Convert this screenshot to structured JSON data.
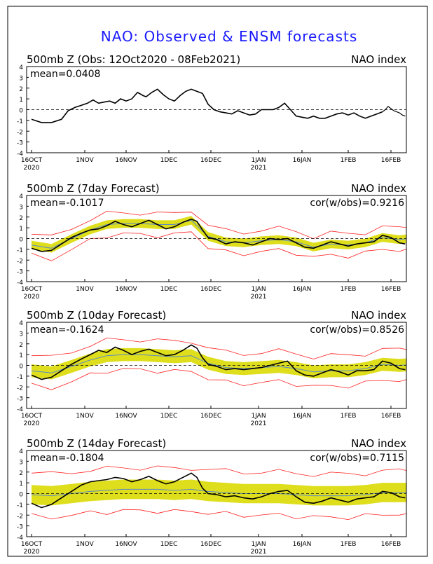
{
  "title": "NAO: Observed & ENSM forecasts",
  "colors": {
    "title": "#1a1aff",
    "observed": "#000000",
    "ensemble_members": "#ff2020",
    "spread_band": "#dede1c",
    "ensemble_mean": "#5a8ac8"
  },
  "x_axis": {
    "tick_labels": [
      "16OCT",
      "1NOV",
      "16NOV",
      "1DEC",
      "16DEC",
      "1JAN",
      "16JAN",
      "1FEB",
      "16FEB"
    ],
    "year_labels": [
      "2020",
      "2021"
    ],
    "day_range": [
      0,
      130
    ]
  },
  "y_axis": {
    "tick_labels": [
      "4",
      "3",
      "2",
      "1",
      "0",
      "-1",
      "-2",
      "-3",
      "-4"
    ],
    "range": [
      -4,
      4
    ]
  },
  "chart_data": [
    {
      "type": "line",
      "title": "500mb Z (Obs: 12Oct2020 - 08Feb2021)",
      "right_label": "NAO index",
      "mean_label": "mean=0.0408",
      "cor_label": "",
      "xlim": [
        0,
        130
      ],
      "ylim": [
        -4,
        4
      ],
      "series": [
        {
          "name": "Observed",
          "x": [
            0,
            3,
            6,
            9,
            11,
            13,
            15,
            17,
            19,
            21,
            23,
            25,
            27,
            29,
            31,
            33,
            35,
            37,
            38,
            40,
            42,
            44,
            46,
            48,
            50,
            52,
            54,
            56,
            58,
            60,
            62,
            64,
            66,
            68,
            70,
            72,
            74,
            76,
            78,
            80,
            82,
            84,
            86,
            88,
            90,
            92,
            94,
            96,
            98,
            100,
            102,
            104,
            106,
            108,
            110,
            112,
            114,
            116,
            118,
            120
          ],
          "y": [
            -0.9,
            -1.2,
            -1.2,
            -0.9,
            -0.1,
            0.2,
            0.4,
            0.6,
            0.9,
            0.6,
            0.7,
            0.8,
            0.6,
            1.0,
            0.8,
            1.0,
            1.6,
            1.3,
            1.2,
            1.6,
            1.9,
            1.4,
            1.0,
            0.8,
            1.3,
            1.7,
            1.9,
            1.7,
            1.5,
            0.5,
            0.0,
            -0.2,
            -0.3,
            -0.4,
            -0.1,
            -0.3,
            -0.5,
            -0.4,
            0.0,
            0.0,
            0.0,
            0.2,
            0.6,
            0.0,
            -0.6,
            -0.7,
            -0.8,
            -0.6,
            -0.8,
            -0.8,
            -0.6,
            -0.4,
            -0.3,
            -0.5,
            -0.3,
            -0.6,
            -0.8,
            -0.6,
            -0.4,
            -0.2
          ]
        },
        {
          "name": "Observed-tail",
          "x": [
            120,
            121,
            122,
            123,
            124,
            125,
            126,
            127,
            128
          ],
          "y": [
            -0.2,
            0.0,
            0.3,
            0.1,
            -0.1,
            -0.2,
            -0.3,
            -0.5,
            -0.6
          ]
        }
      ],
      "members_start": [
        129,
        -0.6
      ],
      "members_end_x": 158,
      "members_end_y": [
        0.9,
        0.6,
        0.3,
        0.0,
        -0.2,
        -0.5,
        -0.8,
        -1.0,
        -1.1
      ]
    },
    {
      "type": "line",
      "title": "500mb Z (7day Forecast)",
      "right_label": "NAO index",
      "mean_label": "mean=-0.1017",
      "cor_label": "cor(w/obs)=0.9216",
      "xlim": [
        0,
        130
      ],
      "ylim": [
        -4,
        4
      ],
      "observed": {
        "x": [
          0,
          3,
          6,
          9,
          12,
          15,
          18,
          21,
          24,
          27,
          30,
          33,
          36,
          39,
          42,
          45,
          48,
          51,
          54,
          56,
          58,
          60,
          63,
          66,
          69,
          72,
          75,
          78,
          81,
          84,
          87,
          90,
          93,
          96,
          99,
          102,
          105,
          108,
          111,
          114,
          117,
          120,
          123,
          126,
          128
        ],
        "y": [
          -0.9,
          -1.2,
          -1.1,
          -0.5,
          0.1,
          0.5,
          0.8,
          0.9,
          1.2,
          1.6,
          1.3,
          1.1,
          1.4,
          1.7,
          1.3,
          0.9,
          1.1,
          1.5,
          1.8,
          1.6,
          0.8,
          0.1,
          -0.1,
          -0.5,
          -0.3,
          -0.4,
          -0.6,
          -0.3,
          0.0,
          -0.1,
          0.0,
          -0.4,
          -0.8,
          -0.9,
          -0.6,
          -0.3,
          -0.5,
          -0.7,
          -0.5,
          -0.4,
          -0.3,
          0.3,
          0.1,
          -0.4,
          -0.5
        ]
      },
      "ensemble_mean": {
        "x": [
          0,
          6,
          12,
          18,
          24,
          30,
          36,
          42,
          48,
          54,
          60,
          66,
          72,
          78,
          84,
          90,
          96,
          102,
          108,
          114,
          120,
          126,
          132
        ],
        "y": [
          -0.6,
          -0.9,
          0.0,
          0.8,
          1.3,
          1.4,
          1.4,
          1.3,
          1.3,
          1.7,
          0.2,
          -0.3,
          -0.4,
          -0.2,
          -0.1,
          -0.3,
          -0.8,
          -0.5,
          -0.6,
          -0.4,
          0.1,
          -0.1,
          0.1
        ]
      },
      "spread": [
        0.4,
        0.4,
        0.4,
        0.4,
        0.4,
        0.4,
        0.4,
        0.4,
        0.4,
        0.4,
        0.4,
        0.4,
        0.4,
        0.4,
        0.4,
        0.4,
        0.4,
        0.4,
        0.4,
        0.4,
        0.4,
        0.4,
        0.4
      ],
      "envelope": [
        1.0,
        1.0,
        1.0,
        1.0,
        1.0,
        1.0,
        1.0,
        1.0,
        1.0,
        1.0,
        1.0,
        1.0,
        1.0,
        1.0,
        1.0,
        1.0,
        1.0,
        1.0,
        1.0,
        1.0,
        1.0,
        1.0,
        1.0
      ]
    },
    {
      "type": "line",
      "title": "500mb Z (10day Forecast)",
      "right_label": "NAO index",
      "mean_label": "mean=-0.1624",
      "cor_label": "cor(w/obs)=0.8526",
      "xlim": [
        0,
        130
      ],
      "ylim": [
        -4,
        4
      ],
      "observed": {
        "x": [
          0,
          3,
          6,
          9,
          12,
          15,
          18,
          21,
          24,
          27,
          30,
          33,
          36,
          39,
          42,
          45,
          48,
          51,
          54,
          56,
          58,
          60,
          63,
          66,
          69,
          72,
          75,
          78,
          81,
          84,
          87,
          90,
          93,
          96,
          99,
          102,
          105,
          108,
          111,
          114,
          117,
          120,
          123,
          126,
          128
        ],
        "y": [
          -0.9,
          -1.3,
          -1.1,
          -0.5,
          0.1,
          0.6,
          1.0,
          1.4,
          1.2,
          1.7,
          1.4,
          1.0,
          1.3,
          1.5,
          1.2,
          0.9,
          1.0,
          1.4,
          1.9,
          1.6,
          0.7,
          0.1,
          -0.1,
          -0.4,
          -0.3,
          -0.4,
          -0.3,
          -0.2,
          0.0,
          0.2,
          0.4,
          -0.5,
          -0.9,
          -1.0,
          -0.7,
          -0.4,
          -0.6,
          -0.9,
          -0.5,
          -0.5,
          -0.4,
          0.4,
          0.2,
          -0.3,
          -0.4
        ]
      },
      "ensemble_mean": {
        "x": [
          0,
          6,
          12,
          18,
          24,
          30,
          36,
          42,
          48,
          54,
          60,
          66,
          72,
          78,
          84,
          90,
          96,
          102,
          108,
          114,
          120,
          126,
          132
        ],
        "y": [
          -0.5,
          -0.7,
          -0.1,
          0.5,
          0.9,
          1.0,
          1.0,
          0.9,
          0.8,
          0.9,
          0.2,
          -0.2,
          -0.3,
          -0.2,
          -0.1,
          -0.3,
          -0.6,
          -0.5,
          -0.5,
          -0.3,
          0.1,
          0.0,
          0.1
        ]
      },
      "spread": [
        0.6,
        0.6,
        0.6,
        0.6,
        0.6,
        0.6,
        0.6,
        0.6,
        0.6,
        0.6,
        0.6,
        0.6,
        0.6,
        0.6,
        0.6,
        0.6,
        0.6,
        0.6,
        0.6,
        0.6,
        0.6,
        0.6,
        0.6
      ],
      "envelope": [
        1.4,
        1.4,
        1.4,
        1.4,
        1.4,
        1.4,
        1.4,
        1.4,
        1.4,
        1.4,
        1.4,
        1.4,
        1.4,
        1.4,
        1.4,
        1.4,
        1.4,
        1.4,
        1.4,
        1.4,
        1.4,
        1.4,
        1.4
      ]
    },
    {
      "type": "line",
      "title": "500mb Z (14day Forecast)",
      "right_label": "NAO index",
      "mean_label": "mean=-0.1804",
      "cor_label": "cor(w/obs)=0.7115",
      "xlim": [
        0,
        130
      ],
      "ylim": [
        -4,
        4
      ],
      "observed": {
        "x": [
          0,
          3,
          6,
          9,
          12,
          15,
          18,
          21,
          24,
          27,
          30,
          33,
          36,
          39,
          42,
          45,
          48,
          51,
          54,
          56,
          58,
          60,
          63,
          66,
          69,
          72,
          75,
          78,
          81,
          84,
          87,
          90,
          93,
          96,
          99,
          102,
          105,
          108,
          111,
          114,
          117,
          120,
          123,
          126,
          128
        ],
        "y": [
          -0.9,
          -1.3,
          -1.0,
          -0.4,
          0.2,
          0.8,
          1.1,
          1.2,
          1.3,
          1.5,
          1.4,
          1.1,
          1.3,
          1.6,
          1.2,
          0.9,
          1.1,
          1.5,
          1.9,
          1.5,
          0.5,
          0.0,
          -0.1,
          -0.3,
          -0.2,
          -0.4,
          -0.5,
          -0.3,
          0.0,
          0.2,
          0.3,
          -0.3,
          -0.8,
          -0.9,
          -0.7,
          -0.4,
          -0.6,
          -0.8,
          -0.5,
          -0.4,
          -0.3,
          0.2,
          0.1,
          -0.3,
          -0.4
        ]
      },
      "ensemble_mean": {
        "x": [
          0,
          6,
          12,
          18,
          24,
          30,
          36,
          42,
          48,
          54,
          60,
          66,
          72,
          78,
          84,
          90,
          96,
          102,
          108,
          114,
          120,
          126,
          132
        ],
        "y": [
          -0.1,
          -0.2,
          0.0,
          0.2,
          0.3,
          0.4,
          0.4,
          0.4,
          0.3,
          0.4,
          0.2,
          0.1,
          0.0,
          0.0,
          0.0,
          -0.1,
          -0.2,
          -0.2,
          -0.2,
          -0.1,
          0.1,
          0.1,
          0.1
        ]
      },
      "spread": [
        0.9,
        0.9,
        0.9,
        0.9,
        0.9,
        0.9,
        0.9,
        0.9,
        0.9,
        0.9,
        0.9,
        0.9,
        0.9,
        0.9,
        0.9,
        0.9,
        0.9,
        0.9,
        0.9,
        0.9,
        0.9,
        0.9,
        0.9
      ],
      "envelope": [
        2.0,
        2.0,
        2.0,
        2.0,
        2.0,
        2.0,
        2.0,
        2.0,
        2.0,
        2.0,
        2.0,
        2.0,
        2.0,
        2.0,
        2.0,
        2.0,
        2.0,
        2.0,
        2.0,
        2.0,
        2.0,
        2.0,
        2.0
      ]
    }
  ]
}
